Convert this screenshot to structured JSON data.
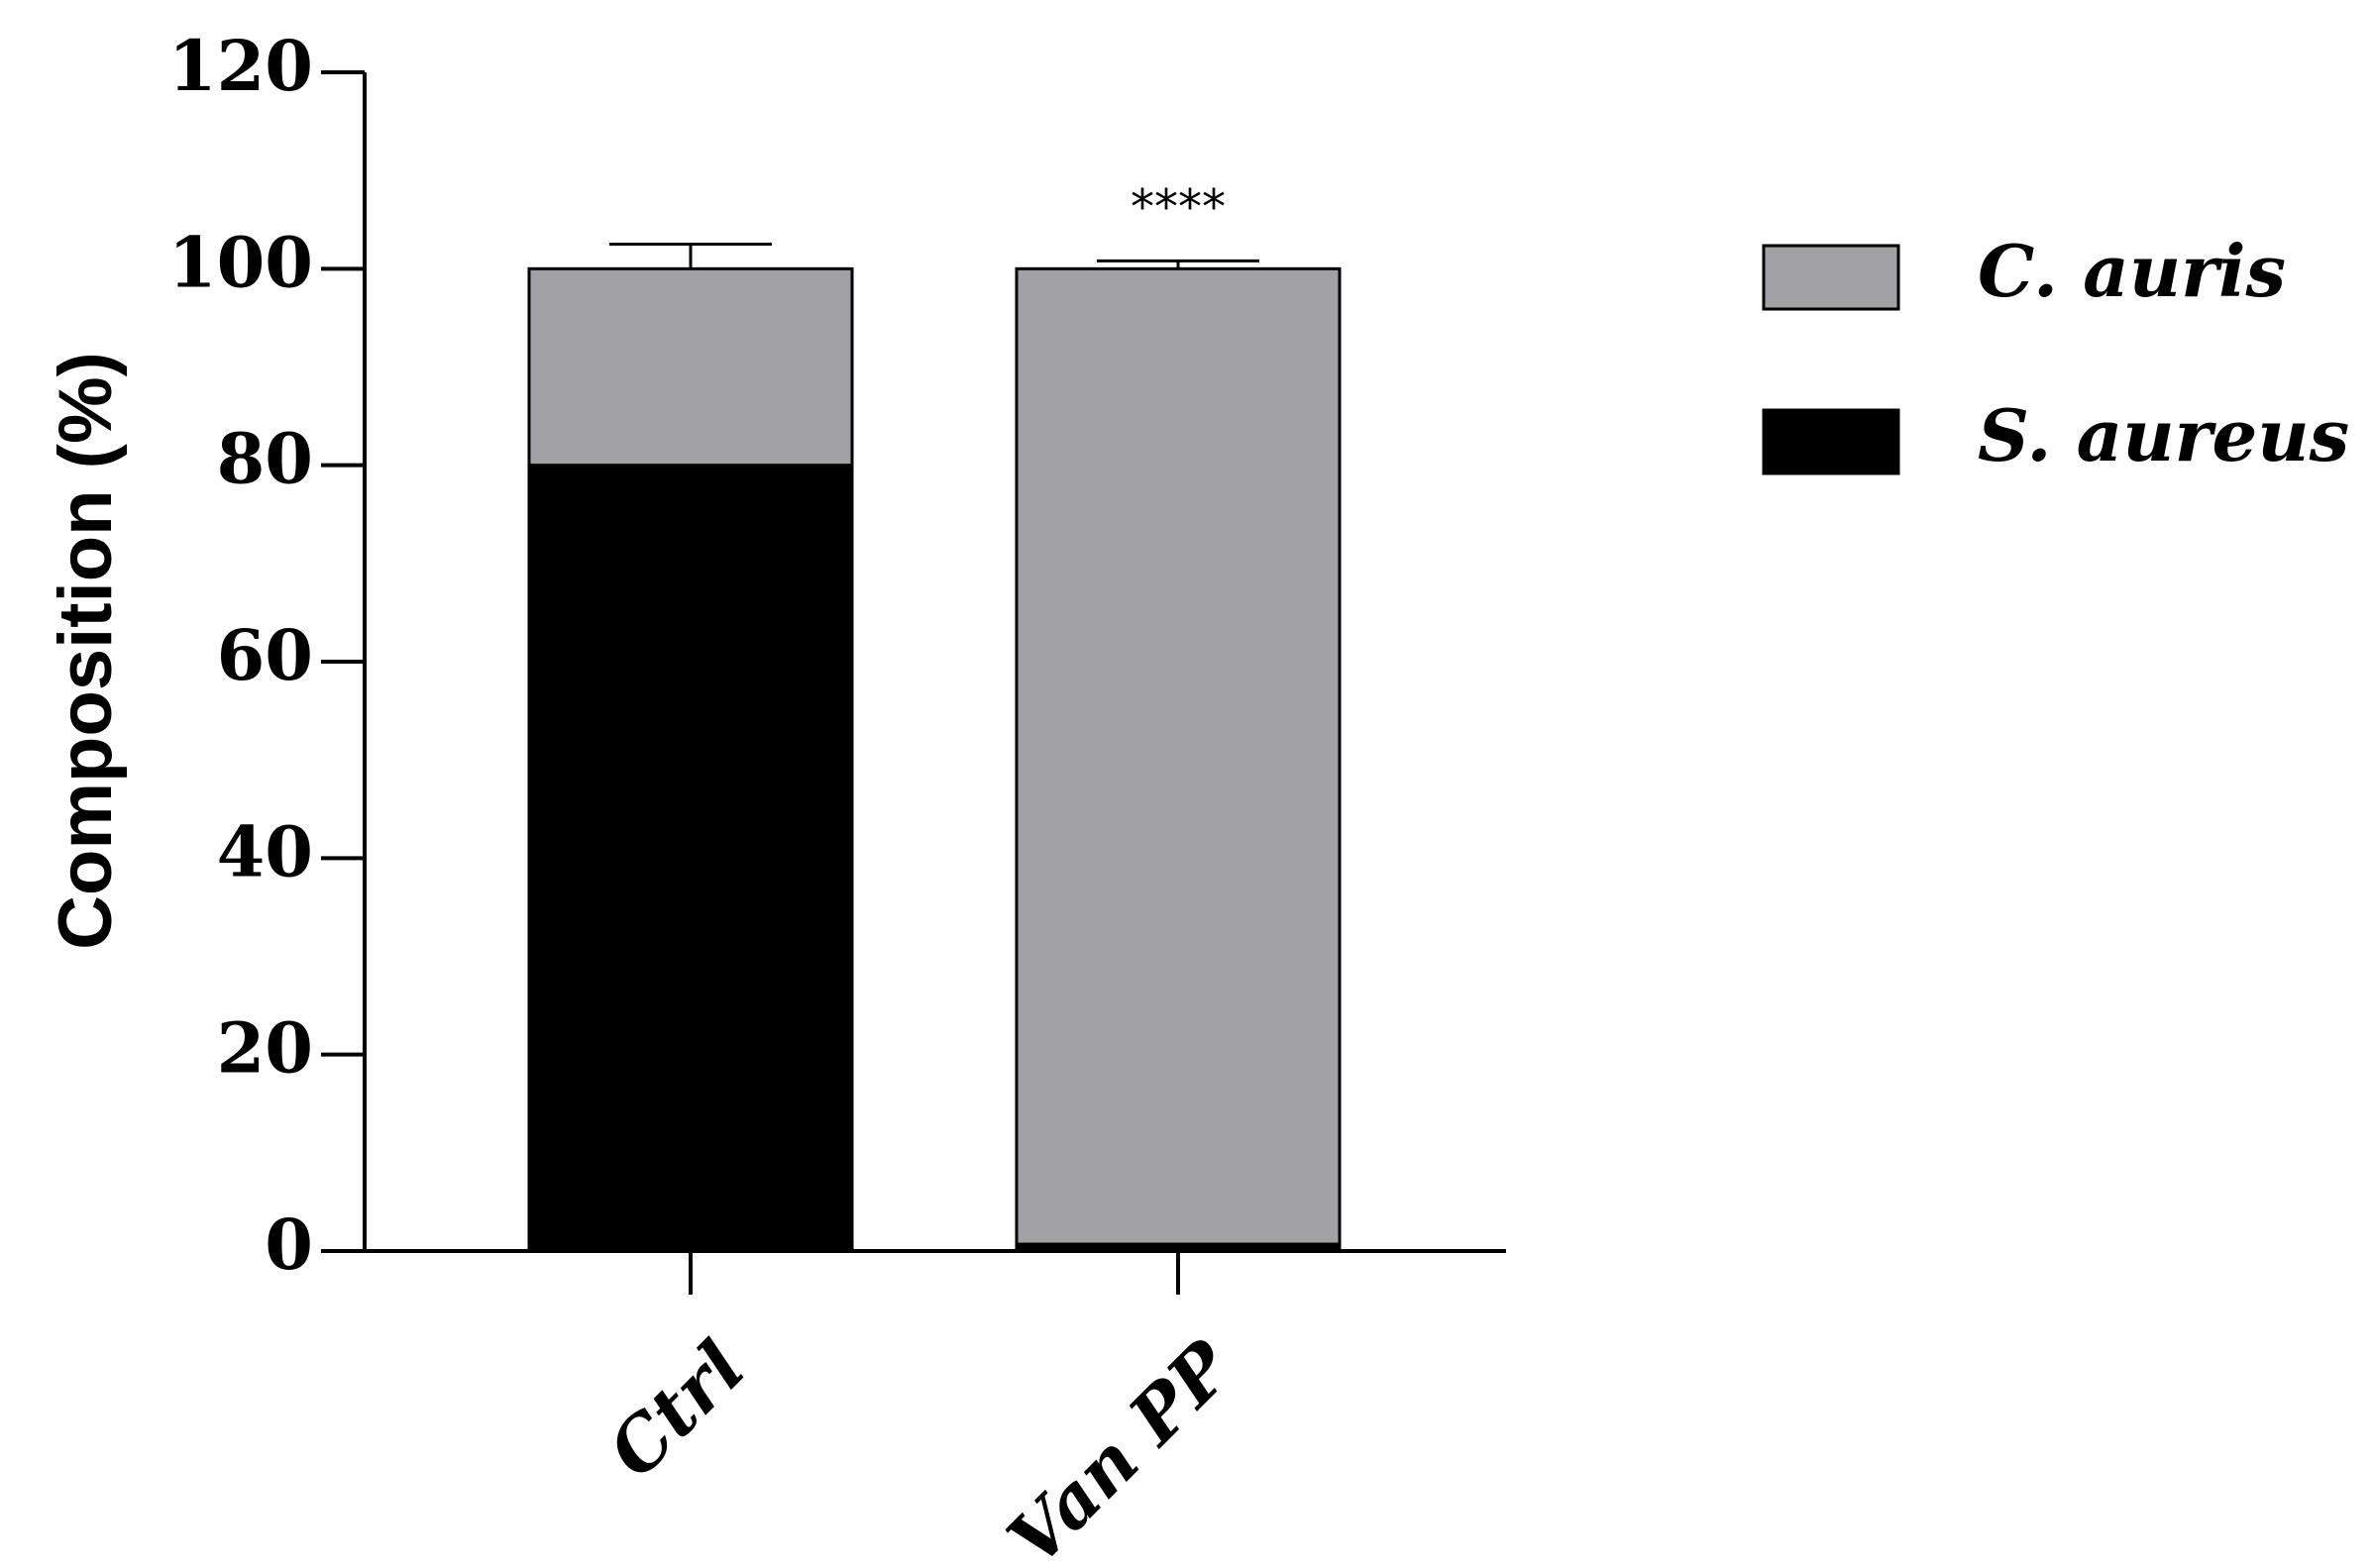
{
  "chart_data": {
    "type": "bar",
    "stacked": true,
    "categories": [
      "Ctrl",
      "Van PP"
    ],
    "series": [
      {
        "name": "S. aureus",
        "values": [
          80,
          0.7
        ],
        "error": [
          2.5,
          1.2
        ],
        "color": "#000000"
      },
      {
        "name": "C. auris",
        "values": [
          20,
          99.3
        ],
        "error": [
          2.5,
          0.8
        ],
        "color": "#a2a1a6"
      }
    ],
    "ylabel": "Composition (%)",
    "ylim": [
      0,
      120
    ],
    "yticks": [
      0,
      20,
      40,
      60,
      80,
      100,
      120
    ],
    "legend_position": "right",
    "legend_order": [
      "C. auris",
      "S. aureus"
    ],
    "annotations": [
      {
        "category": "Van PP",
        "text": "****"
      }
    ]
  }
}
